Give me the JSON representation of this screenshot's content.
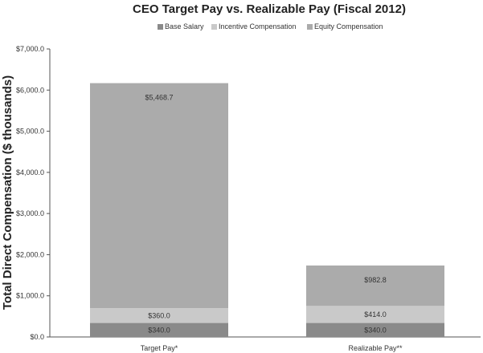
{
  "chart_data": {
    "type": "bar",
    "stacked": true,
    "title": "CEO Target Pay vs. Realizable Pay (Fiscal 2012)",
    "xlabel": "",
    "ylabel": "Total Direct Compensation ($ thousands)",
    "ylim": [
      0,
      7000
    ],
    "yticks": [
      "$0.0",
      "$1,000.0",
      "$2,000.0",
      "$3,000.0",
      "$4,000.0",
      "$5,000.0",
      "$6,000.0",
      "$7,000.0"
    ],
    "grid": false,
    "legend_position": "top",
    "categories": [
      "Target Pay*",
      "Realizable Pay**"
    ],
    "series": [
      {
        "name": "Base Salary",
        "color": "#8a8a8a",
        "values": [
          340.0,
          340.0
        ],
        "labels": [
          "$340.0",
          "$340.0"
        ]
      },
      {
        "name": "Incentive Compensation",
        "color": "#c9c9c9",
        "values": [
          360.0,
          414.0
        ],
        "labels": [
          "$360.0",
          "$414.0"
        ]
      },
      {
        "name": "Equity Compensation",
        "color": "#ababab",
        "values": [
          5468.7,
          982.8
        ],
        "labels": [
          "$5,468.7",
          "$982.8"
        ]
      }
    ]
  }
}
